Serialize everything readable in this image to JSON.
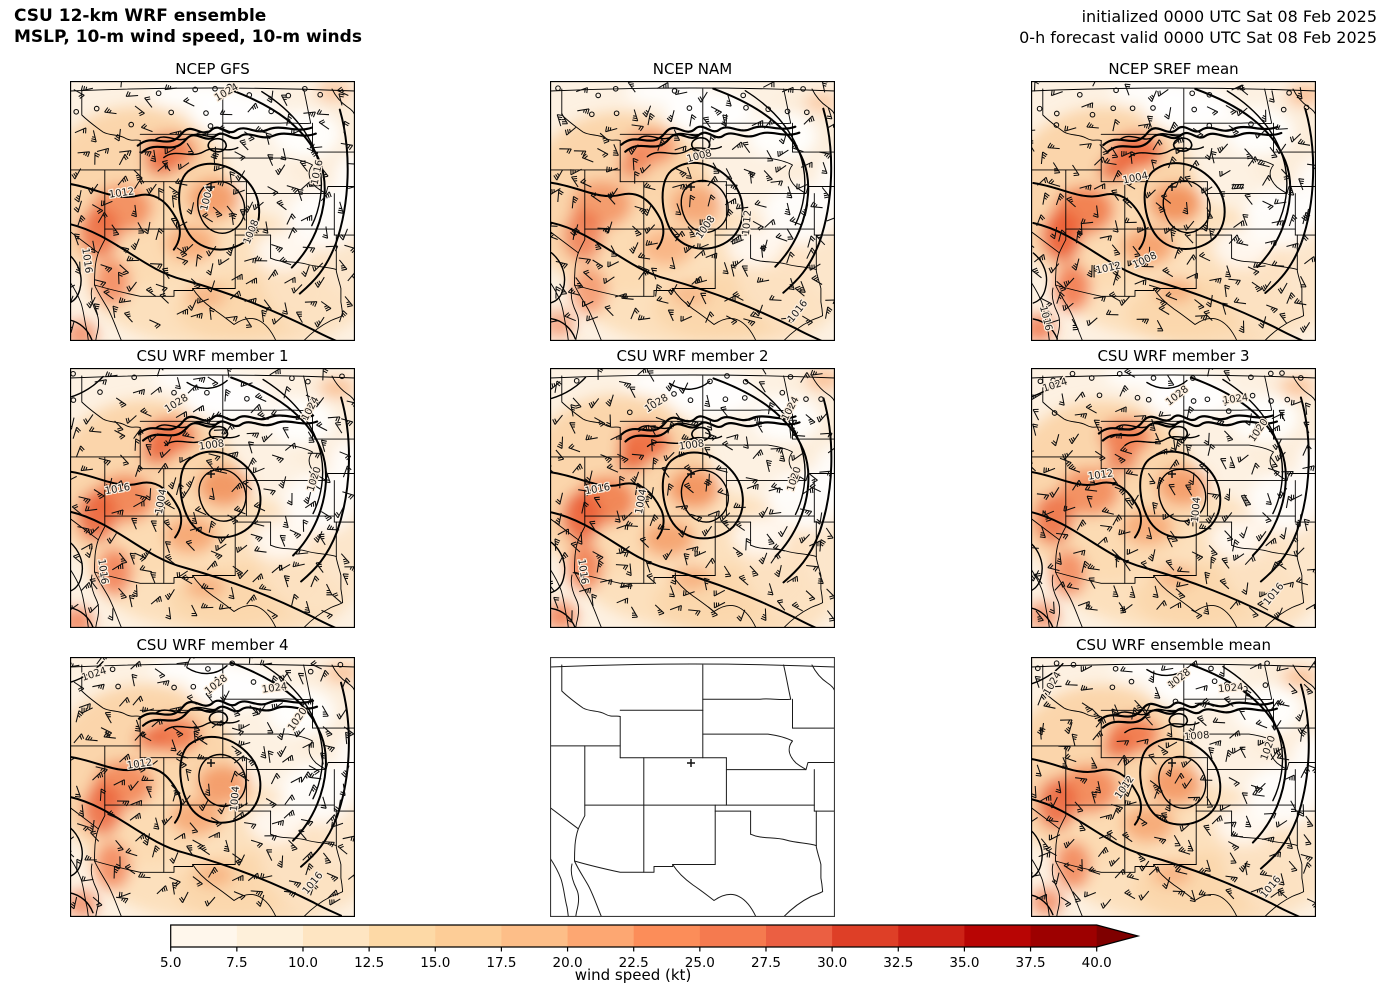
{
  "figure": {
    "title_line1": "CSU 12-km WRF ensemble",
    "title_line2": "MSLP, 10-m wind speed, 10-m winds",
    "init_text": "initialized 0000 UTC Sat 08 Feb 2025",
    "valid_text": "0-h forecast valid 0000 UTC Sat 08 Feb 2025"
  },
  "panels": [
    {
      "id": "ncep-gfs",
      "title": "NCEP GFS",
      "row": 0,
      "col": 0,
      "has_data": true,
      "marker": "+",
      "contour_labels": [
        "1012",
        "1004",
        "1008",
        "1016",
        "1024",
        "1016"
      ]
    },
    {
      "id": "ncep-nam",
      "title": "NCEP NAM",
      "row": 0,
      "col": 1,
      "has_data": true,
      "marker": "+",
      "contour_labels": [
        "1008",
        "1012",
        "1008",
        "1016"
      ]
    },
    {
      "id": "ncep-sref-mean",
      "title": "NCEP SREF mean",
      "row": 0,
      "col": 2,
      "has_data": true,
      "marker": "+",
      "contour_labels": [
        "1004",
        "1008",
        "1012",
        "1016"
      ]
    },
    {
      "id": "csu-wrf-member-1",
      "title": "CSU WRF member 1",
      "row": 1,
      "col": 0,
      "has_data": true,
      "marker": "+",
      "contour_labels": [
        "1028",
        "1024",
        "1020",
        "1016",
        "1008",
        "1004",
        "1016"
      ]
    },
    {
      "id": "csu-wrf-member-2",
      "title": "CSU WRF member 2",
      "row": 1,
      "col": 1,
      "has_data": true,
      "marker": "+",
      "contour_labels": [
        "1028",
        "1024",
        "1020",
        "1016",
        "1008",
        "1004",
        "1016"
      ]
    },
    {
      "id": "csu-wrf-member-3",
      "title": "CSU WRF member 3",
      "row": 1,
      "col": 2,
      "has_data": true,
      "marker": "+",
      "contour_labels": [
        "1024",
        "1028",
        "1024",
        "1020",
        "1012",
        "1004",
        "1016"
      ]
    },
    {
      "id": "csu-wrf-member-4",
      "title": "CSU WRF member 4",
      "row": 2,
      "col": 0,
      "has_data": true,
      "marker": "+",
      "contour_labels": [
        "1024",
        "1028",
        "1024",
        "1020",
        "1012",
        "1004",
        "1016"
      ]
    },
    {
      "id": "empty-map",
      "title": "",
      "row": 2,
      "col": 1,
      "has_data": false,
      "marker": "+",
      "contour_labels": []
    },
    {
      "id": "csu-wrf-ensemble-mean",
      "title": "CSU WRF ensemble mean",
      "row": 2,
      "col": 2,
      "has_data": true,
      "marker": "+",
      "contour_labels": [
        "1024",
        "1028",
        "1024",
        "1020",
        "1008",
        "1012",
        "1016"
      ]
    }
  ],
  "colorbar": {
    "label": "wind speed (kt)",
    "ticks": [
      "5.0",
      "7.5",
      "10.0",
      "12.5",
      "15.0",
      "17.5",
      "20.0",
      "22.5",
      "25.0",
      "27.5",
      "30.0",
      "32.5",
      "35.0",
      "37.5",
      "40.0"
    ],
    "colors": [
      "#fff7ec",
      "#fef0da",
      "#fee5c2",
      "#fdd9a6",
      "#fdcd97",
      "#fdbe88",
      "#fda772",
      "#fc8d59",
      "#f57a4f",
      "#eb5f42",
      "#de3f27",
      "#cd2216",
      "#b80504",
      "#9d0000"
    ],
    "over_color": "#7f0000"
  },
  "chart_data": {
    "type": "heatmap",
    "layout": "3x3 grid of map panels over the western/central United States",
    "shaded_variable": "10-m wind speed (kt)",
    "contour_variable": "MSLP (hPa)",
    "vector_variable": "10-m winds (wind barbs)",
    "panel_titles": [
      "NCEP GFS",
      "NCEP NAM",
      "NCEP SREF mean",
      "CSU WRF member 1",
      "CSU WRF member 2",
      "CSU WRF member 3",
      "CSU WRF member 4",
      "",
      "CSU WRF ensemble mean"
    ],
    "empty_panel_position": "row 3, column 2 (state outlines and site marker only)",
    "mslp_contour_values_visible_hpa": [
      1004,
      1008,
      1012,
      1016,
      1020,
      1024,
      1028
    ],
    "colorbar": {
      "min": 5.0,
      "max": 40.0,
      "bin_width": 2.5,
      "extend": "max",
      "units": "kt",
      "palette": "OrRd"
    },
    "initialized": "0000 UTC Sat 08 Feb 2025",
    "valid": "0000 UTC Sat 08 Feb 2025",
    "forecast_hour": "0-h"
  }
}
